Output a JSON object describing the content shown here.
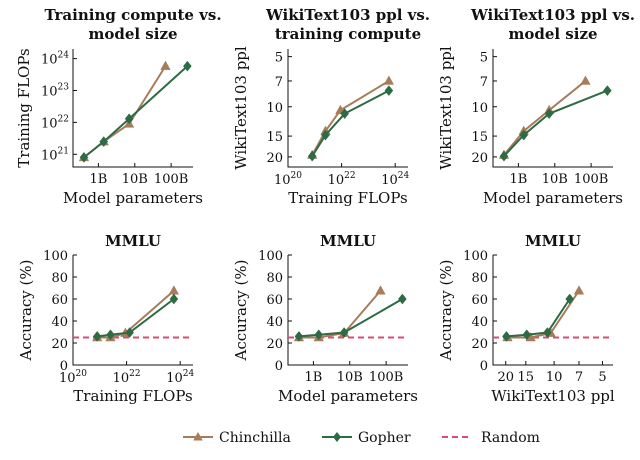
{
  "colors": {
    "chinchilla": "#a67c5b",
    "gopher": "#2e6b45",
    "random": "#dd4a6f",
    "axis": "#111111"
  },
  "legend": {
    "chinchilla": "Chinchilla",
    "gopher": "Gopher",
    "random": "Random"
  },
  "chart_data": [
    {
      "type": "line",
      "title": [
        "Training compute vs.",
        "model size"
      ],
      "xlabel": "Model parameters",
      "ylabel": "Training FLOPs",
      "xscale": "log",
      "yscale": "log",
      "xlim": [
        200000000.0,
        400000000000.0
      ],
      "ylim": [
        4e+20,
        2e+24
      ],
      "xticks": [
        {
          "v": 1000000000.0,
          "label": "1B"
        },
        {
          "v": 10000000000.0,
          "label": "10B"
        },
        {
          "v": 100000000000.0,
          "label": "100B"
        }
      ],
      "yticks": [
        {
          "v": 1e+21,
          "base": "10",
          "exp": "21"
        },
        {
          "v": 1e+22,
          "base": "10",
          "exp": "22"
        },
        {
          "v": 1e+23,
          "base": "10",
          "exp": "23"
        },
        {
          "v": 1e+24,
          "base": "10",
          "exp": "24"
        }
      ],
      "series": [
        {
          "name": "Chinchilla",
          "x": [
            400000000.0,
            1400000000.0,
            7000000000.0,
            70000000000.0
          ],
          "y": [
            8e+20,
            2.5e+21,
            9e+21,
            5.8e+23
          ]
        },
        {
          "name": "Gopher",
          "x": [
            400000000.0,
            1400000000.0,
            7000000000.0,
            280000000000.0
          ],
          "y": [
            8e+20,
            2.5e+21,
            1.3e+22,
            5.8e+23
          ]
        }
      ]
    },
    {
      "type": "line",
      "title": [
        "WikiText103 ppl vs.",
        "training compute"
      ],
      "xlabel": "Training FLOPs",
      "ylabel": "WikiText103 ppl",
      "xscale": "log",
      "yscale": "log",
      "yreversed": true,
      "xlim": [
        1e+20,
        3e+24
      ],
      "ylim": [
        23,
        4.5
      ],
      "xticks": [
        {
          "v": 1e+20,
          "base": "10",
          "exp": "20"
        },
        {
          "v": 1e+22,
          "base": "10",
          "exp": "22"
        },
        {
          "v": 1e+24,
          "base": "10",
          "exp": "24"
        }
      ],
      "yticks": [
        {
          "v": 5,
          "label": "5"
        },
        {
          "v": 7,
          "label": "7"
        },
        {
          "v": 10,
          "label": "10"
        },
        {
          "v": 15,
          "label": "15"
        },
        {
          "v": 20,
          "label": "20"
        }
      ],
      "series": [
        {
          "name": "Chinchilla",
          "x": [
            8e+20,
            2.5e+21,
            9e+21,
            5.8e+23
          ],
          "y": [
            19.5,
            14,
            10.5,
            7
          ]
        },
        {
          "name": "Gopher",
          "x": [
            8e+20,
            2.5e+21,
            1.3e+22,
            5.8e+23
          ],
          "y": [
            19.8,
            14.8,
            11,
            8
          ]
        }
      ]
    },
    {
      "type": "line",
      "title": [
        "WikiText103 ppl vs.",
        "model size"
      ],
      "xlabel": "Model parameters",
      "ylabel": "WikiText103 ppl",
      "xscale": "log",
      "yscale": "log",
      "yreversed": true,
      "xlim": [
        200000000.0,
        400000000000.0
      ],
      "ylim": [
        23,
        4.5
      ],
      "xticks": [
        {
          "v": 1000000000.0,
          "label": "1B"
        },
        {
          "v": 10000000000.0,
          "label": "10B"
        },
        {
          "v": 100000000000.0,
          "label": "100B"
        }
      ],
      "yticks": [
        {
          "v": 5,
          "label": "5"
        },
        {
          "v": 7,
          "label": "7"
        },
        {
          "v": 10,
          "label": "10"
        },
        {
          "v": 15,
          "label": "15"
        },
        {
          "v": 20,
          "label": "20"
        }
      ],
      "series": [
        {
          "name": "Chinchilla",
          "x": [
            400000000.0,
            1400000000.0,
            7000000000.0,
            70000000000.0
          ],
          "y": [
            19.5,
            14,
            10.5,
            7
          ]
        },
        {
          "name": "Gopher",
          "x": [
            400000000.0,
            1400000000.0,
            7000000000.0,
            280000000000.0
          ],
          "y": [
            19.8,
            14.8,
            11,
            8
          ]
        }
      ]
    },
    {
      "type": "line",
      "title": [
        "MMLU"
      ],
      "xlabel": "Training FLOPs",
      "ylabel": "Accuracy (%)",
      "xscale": "log",
      "yscale": "linear",
      "xlim": [
        1e+20,
        3e+24
      ],
      "ylim": [
        0,
        100
      ],
      "xticks": [
        {
          "v": 1e+20,
          "base": "10",
          "exp": "20"
        },
        {
          "v": 1e+22,
          "base": "10",
          "exp": "22"
        },
        {
          "v": 1e+24,
          "base": "10",
          "exp": "24"
        }
      ],
      "yticks": [
        {
          "v": 0,
          "label": "0"
        },
        {
          "v": 20,
          "label": "20"
        },
        {
          "v": 40,
          "label": "40"
        },
        {
          "v": 60,
          "label": "60"
        },
        {
          "v": 80,
          "label": "80"
        },
        {
          "v": 100,
          "label": "100"
        }
      ],
      "random": 25,
      "series": [
        {
          "name": "Chinchilla",
          "x": [
            8e+20,
            2.5e+21,
            9e+21,
            5.8e+23
          ],
          "y": [
            25,
            25,
            29,
            67.5
          ]
        },
        {
          "name": "Gopher",
          "x": [
            8e+20,
            2.5e+21,
            1.3e+22,
            5.8e+23
          ],
          "y": [
            26,
            27.5,
            29.5,
            60
          ]
        }
      ]
    },
    {
      "type": "line",
      "title": [
        "MMLU"
      ],
      "xlabel": "Model parameters",
      "ylabel": "Accuracy (%)",
      "xscale": "log",
      "yscale": "linear",
      "xlim": [
        200000000.0,
        400000000000.0
      ],
      "ylim": [
        0,
        100
      ],
      "xticks": [
        {
          "v": 1000000000.0,
          "label": "1B"
        },
        {
          "v": 10000000000.0,
          "label": "10B"
        },
        {
          "v": 100000000000.0,
          "label": "100B"
        }
      ],
      "yticks": [
        {
          "v": 0,
          "label": "0"
        },
        {
          "v": 20,
          "label": "20"
        },
        {
          "v": 40,
          "label": "40"
        },
        {
          "v": 60,
          "label": "60"
        },
        {
          "v": 80,
          "label": "80"
        },
        {
          "v": 100,
          "label": "100"
        }
      ],
      "random": 25,
      "series": [
        {
          "name": "Chinchilla",
          "x": [
            400000000.0,
            1400000000.0,
            7000000000.0,
            70000000000.0
          ],
          "y": [
            25,
            25,
            29,
            67.5
          ]
        },
        {
          "name": "Gopher",
          "x": [
            400000000.0,
            1400000000.0,
            7000000000.0,
            280000000000.0
          ],
          "y": [
            26,
            27.5,
            29.5,
            60
          ]
        }
      ]
    },
    {
      "type": "line",
      "title": [
        "MMLU"
      ],
      "xlabel": "WikiText103 ppl",
      "ylabel": "Accuracy (%)",
      "xscale": "log",
      "yscale": "linear",
      "xreversed": true,
      "xlim": [
        24,
        4.3
      ],
      "ylim": [
        0,
        100
      ],
      "xticks": [
        {
          "v": 20,
          "label": "20"
        },
        {
          "v": 15,
          "label": "15"
        },
        {
          "v": 10,
          "label": "10"
        },
        {
          "v": 7,
          "label": "7"
        },
        {
          "v": 5,
          "label": "5"
        }
      ],
      "yticks": [
        {
          "v": 0,
          "label": "0"
        },
        {
          "v": 20,
          "label": "20"
        },
        {
          "v": 40,
          "label": "40"
        },
        {
          "v": 60,
          "label": "60"
        },
        {
          "v": 80,
          "label": "80"
        },
        {
          "v": 100,
          "label": "100"
        }
      ],
      "random": 25,
      "series": [
        {
          "name": "Chinchilla",
          "x": [
            19.5,
            14,
            10.5,
            7
          ],
          "y": [
            25,
            25,
            29,
            67.5
          ]
        },
        {
          "name": "Gopher",
          "x": [
            19.8,
            14.8,
            11,
            8
          ],
          "y": [
            26,
            27.5,
            29.5,
            60
          ]
        }
      ]
    }
  ]
}
